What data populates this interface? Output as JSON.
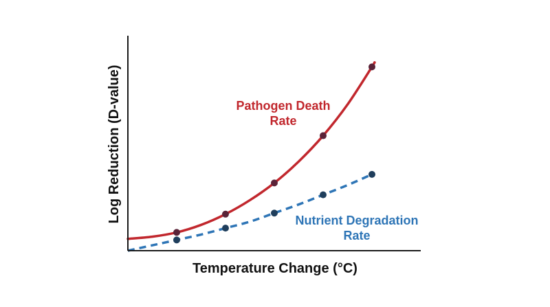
{
  "chart_data": {
    "type": "line",
    "title": "",
    "xlabel": "Temperature Change (°C)",
    "ylabel": "Log Reduction (D-value)",
    "xlim": [
      0,
      6
    ],
    "ylim": [
      0,
      10
    ],
    "grid": false,
    "legend": "inline labels",
    "series": [
      {
        "name": "Pathogen Death Rate",
        "label_lines": [
          "Pathogen Death",
          "Rate"
        ],
        "color": "#c1272d",
        "line_style": "solid",
        "marker_color": "#5a2338",
        "curve": [
          [
            0,
            0.55
          ],
          [
            0.5,
            0.65
          ],
          [
            1,
            0.85
          ],
          [
            1.5,
            1.2
          ],
          [
            2,
            1.7
          ],
          [
            2.5,
            2.35
          ],
          [
            3,
            3.15
          ],
          [
            3.5,
            4.15
          ],
          [
            4,
            5.35
          ],
          [
            4.5,
            6.8
          ],
          [
            5,
            8.55
          ],
          [
            5.05,
            8.75
          ]
        ],
        "points": [
          [
            1.0,
            0.85
          ],
          [
            2.0,
            1.7
          ],
          [
            3.0,
            3.15
          ],
          [
            4.0,
            5.35
          ],
          [
            5.0,
            8.55
          ]
        ]
      },
      {
        "name": "Nutrient Degradation Rate",
        "label_lines": [
          "Nutrient Degradation",
          "Rate"
        ],
        "color": "#2e75b6",
        "line_style": "dashed",
        "marker_color": "#1f3e5c",
        "curve": [
          [
            0,
            0.0
          ],
          [
            0.5,
            0.25
          ],
          [
            1,
            0.5
          ],
          [
            1.5,
            0.75
          ],
          [
            2,
            1.05
          ],
          [
            2.5,
            1.35
          ],
          [
            3,
            1.75
          ],
          [
            3.5,
            2.15
          ],
          [
            4,
            2.6
          ],
          [
            4.5,
            3.05
          ],
          [
            5,
            3.55
          ]
        ],
        "points": [
          [
            1.0,
            0.5
          ],
          [
            2.0,
            1.05
          ],
          [
            3.0,
            1.75
          ],
          [
            4.0,
            2.6
          ],
          [
            5.0,
            3.55
          ]
        ]
      }
    ]
  }
}
